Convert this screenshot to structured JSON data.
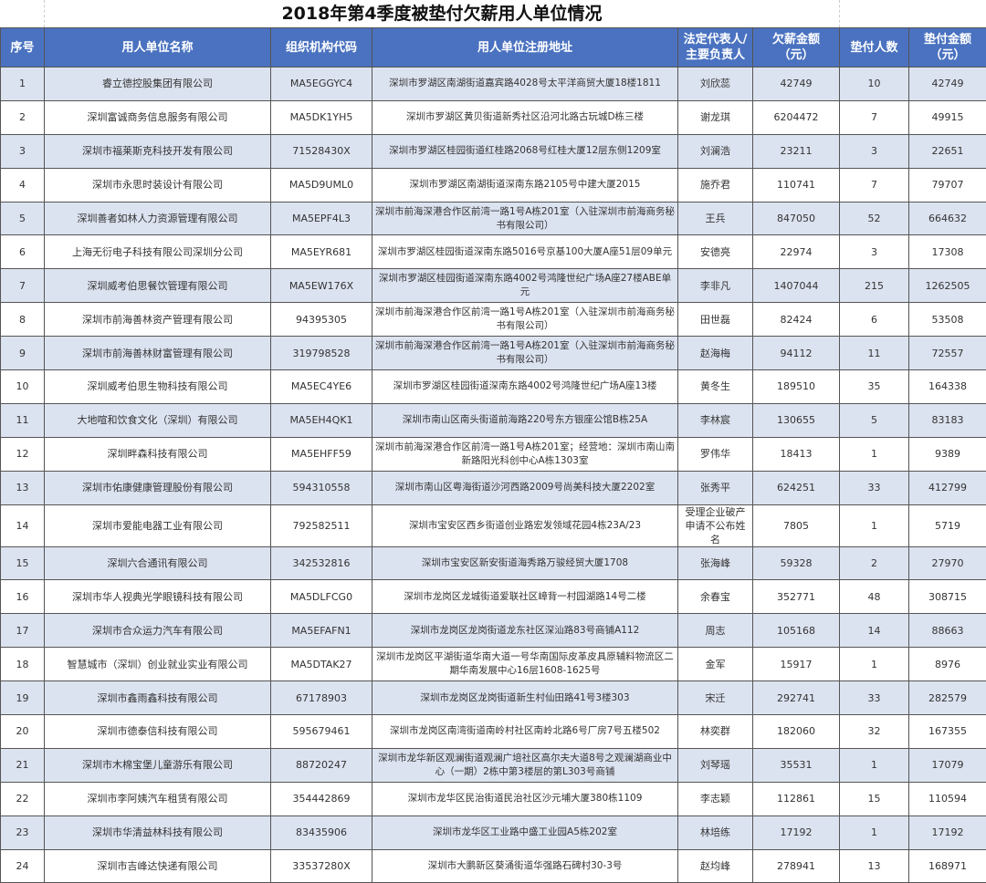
{
  "title": "2018年第4季度被垫付欠薪用人单位情况",
  "colors": {
    "header_bg": "#4a72c0",
    "stripe_bg": "#dce3f0"
  },
  "headers": {
    "no": "序号",
    "name": "用人单位名称",
    "code": "组织机构代码",
    "address": "用人单位注册地址",
    "rep_line1": "法定代表人/",
    "rep_line2": "主要负责人",
    "owed_line1": "欠薪金额",
    "owed_line2": "（元）",
    "count": "垫付人数",
    "paid_line1": "垫付金额",
    "paid_line2": "（元）"
  },
  "rows": [
    {
      "no": "1",
      "name": "睿立德控股集团有限公司",
      "code": "MA5EGGYC4",
      "address": "深圳市罗湖区南湖街道嘉宾路4028号太平洋商贸大厦18楼1811",
      "rep": "刘欣蕊",
      "owed": "42749",
      "count": "10",
      "paid": "42749"
    },
    {
      "no": "2",
      "name": "深圳富诚商务信息服务有限公司",
      "code": "MA5DK1YH5",
      "address": "深圳市罗湖区黄贝街道新秀社区沿河北路古玩城D栋三楼",
      "rep": "谢龙琪",
      "owed": "6204472",
      "count": "7",
      "paid": "49915"
    },
    {
      "no": "3",
      "name": "深圳市福莱斯克科技开发有限公司",
      "code": "71528430X",
      "address": "深圳市罗湖区桂园街道红桂路2068号红桂大厦12层东侧1209室",
      "rep": "刘澜浩",
      "owed": "23211",
      "count": "3",
      "paid": "22651"
    },
    {
      "no": "4",
      "name": "深圳市永思时装设计有限公司",
      "code": "MA5D9UML0",
      "address": "深圳市罗湖区南湖街道深南东路2105号中建大厦2015",
      "rep": "施乔君",
      "owed": "110741",
      "count": "7",
      "paid": "79707"
    },
    {
      "no": "5",
      "name": "深圳善者如林人力资源管理有限公司",
      "code": "MA5EPF4L3",
      "address": "深圳市前海深港合作区前湾一路1号A栋201室（入驻深圳市前海商务秘书有限公司）",
      "rep": "王兵",
      "owed": "847050",
      "count": "52",
      "paid": "664632"
    },
    {
      "no": "6",
      "name": "上海无衍电子科技有限公司深圳分公司",
      "code": "MA5EYR681",
      "address": "深圳市罗湖区桂园街道深南东路5016号京基100大厦A座51层09单元",
      "rep": "安德亮",
      "owed": "22974",
      "count": "3",
      "paid": "17308"
    },
    {
      "no": "7",
      "name": "深圳威考伯思餐饮管理有限公司",
      "code": "MA5EW176X",
      "address": "深圳市罗湖区桂园街道深南东路4002号鸿隆世纪广场A座27楼ABE单元",
      "rep": "李非凡",
      "owed": "1407044",
      "count": "215",
      "paid": "1262505"
    },
    {
      "no": "8",
      "name": "深圳市前海善林资产管理有限公司",
      "code": "94395305",
      "address": "深圳市前海深港合作区前湾一路1号A栋201室（入驻深圳市前海商务秘书有限公司）",
      "rep": "田世磊",
      "owed": "82424",
      "count": "6",
      "paid": "53508"
    },
    {
      "no": "9",
      "name": "深圳市前海善林财富管理有限公司",
      "code": "319798528",
      "address": "深圳市前海深港合作区前湾一路1号A栋201室（入驻深圳市前海商务秘书有限公司）",
      "rep": "赵海梅",
      "owed": "94112",
      "count": "11",
      "paid": "72557"
    },
    {
      "no": "10",
      "name": "深圳威考伯思生物科技有限公司",
      "code": "MA5EC4YE6",
      "address": "深圳市罗湖区桂园街道深南东路4002号鸿隆世纪广场A座13楼",
      "rep": "黄冬生",
      "owed": "189510",
      "count": "35",
      "paid": "164338"
    },
    {
      "no": "11",
      "name": "大地喧和饮食文化（深圳）有限公司",
      "code": "MA5EH4QK1",
      "address": "深圳市南山区南头街道前海路220号东方银座公馆B栋25A",
      "rep": "李林宸",
      "owed": "130655",
      "count": "5",
      "paid": "83183"
    },
    {
      "no": "12",
      "name": "深圳畔森科技有限公司",
      "code": "MA5EHFF59",
      "address": "深圳市前海深港合作区前湾一路1号A栋201室；经营地：深圳市南山南新路阳光科创中心A栋1303室",
      "rep": "罗伟华",
      "owed": "18413",
      "count": "1",
      "paid": "9389"
    },
    {
      "no": "13",
      "name": "深圳市佑康健康管理股份有限公司",
      "code": "594310558",
      "address": "深圳市南山区粤海街道沙河西路2009号尚美科技大厦2202室",
      "rep": "张秀平",
      "owed": "624251",
      "count": "33",
      "paid": "412799"
    },
    {
      "no": "14",
      "name": "深圳市爱能电器工业有限公司",
      "code": "792582511",
      "address": "深圳市宝安区西乡街道创业路宏发领域花园4栋23A/23",
      "rep": "受理企业破产申请不公布姓名",
      "owed": "7805",
      "count": "1",
      "paid": "5719"
    },
    {
      "no": "15",
      "name": "深圳六合通讯有限公司",
      "code": "342532816",
      "address": "深圳市宝安区新安街道海秀路万骏经贸大厦1708",
      "rep": "张海峰",
      "owed": "59328",
      "count": "2",
      "paid": "27970"
    },
    {
      "no": "16",
      "name": "深圳市华人视典光学眼镜科技有限公司",
      "code": "MA5DLFCG0",
      "address": "深圳市龙岗区龙城街道爱联社区嶂背一村园湖路14号二楼",
      "rep": "余春宝",
      "owed": "352771",
      "count": "48",
      "paid": "308715"
    },
    {
      "no": "17",
      "name": "深圳市合众运力汽车有限公司",
      "code": "MA5EFAFN1",
      "address": "深圳市龙岗区龙岗街道龙东社区深汕路83号商铺A112",
      "rep": "周志",
      "owed": "105168",
      "count": "14",
      "paid": "88663"
    },
    {
      "no": "18",
      "name": "智慧城市（深圳）创业就业实业有限公司",
      "code": "MA5DTAK27",
      "address": "深圳市龙岗区平湖街道华南大道一号华南国际皮革皮具原辅料物流区二期华南发展中心16层1608-1625号",
      "rep": "金军",
      "owed": "15917",
      "count": "1",
      "paid": "8976"
    },
    {
      "no": "19",
      "name": "深圳市鑫雨鑫科技有限公司",
      "code": "67178903",
      "address": "深圳市龙岗区龙岗街道新生村仙田路41号3楼303",
      "rep": "宋迁",
      "owed": "292741",
      "count": "33",
      "paid": "282579"
    },
    {
      "no": "20",
      "name": "深圳市德泰信科技有限公司",
      "code": "595679461",
      "address": "深圳市龙岗区南湾街道南岭村社区南岭北路6号厂房7号五楼502",
      "rep": "林奕群",
      "owed": "182060",
      "count": "32",
      "paid": "167355"
    },
    {
      "no": "21",
      "name": "深圳市木棉宝堡儿童游乐有限公司",
      "code": "88720247",
      "address": "深圳市龙华新区观澜街道观澜广培社区高尔夫大道8号之观澜湖商业中心（一期）2栋中第3楼层的第L303号商铺",
      "rep": "刘琴瑶",
      "owed": "35531",
      "count": "1",
      "paid": "17079"
    },
    {
      "no": "22",
      "name": "深圳市李阿姨汽车租赁有限公司",
      "code": "354442869",
      "address": "深圳市龙华区民治街道民治社区沙元埔大厦380栋1109",
      "rep": "李志颖",
      "owed": "112861",
      "count": "15",
      "paid": "110594"
    },
    {
      "no": "23",
      "name": "深圳市华清益林科技有限公司",
      "code": "83435906",
      "address": "深圳市龙华区工业路中盛工业园A5栋202室",
      "rep": "林培练",
      "owed": "17192",
      "count": "1",
      "paid": "17192"
    },
    {
      "no": "24",
      "name": "深圳市吉峰达快递有限公司",
      "code": "33537280X",
      "address": "深圳市大鹏新区葵涌街道华强路石碑村30-3号",
      "rep": "赵均峰",
      "owed": "278941",
      "count": "13",
      "paid": "168971"
    }
  ]
}
